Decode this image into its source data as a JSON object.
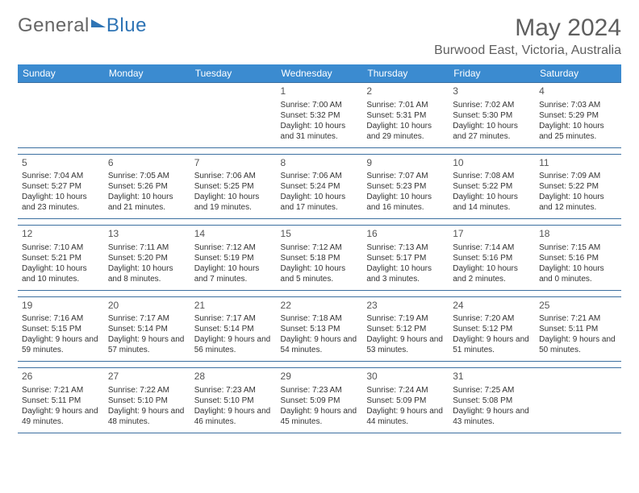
{
  "logo": {
    "part1": "General",
    "part2": "Blue"
  },
  "title": "May 2024",
  "location": "Burwood East, Victoria, Australia",
  "colors": {
    "header_bg": "#3b8bd0",
    "header_text": "#ffffff",
    "cell_border": "#3b6fa0",
    "body_text": "#333333",
    "title_text": "#5f5f5f",
    "logo_blue": "#2e74b5",
    "background": "#ffffff"
  },
  "day_headers": [
    "Sunday",
    "Monday",
    "Tuesday",
    "Wednesday",
    "Thursday",
    "Friday",
    "Saturday"
  ],
  "weeks": [
    [
      null,
      null,
      null,
      {
        "d": "1",
        "r": "7:00 AM",
        "s": "5:32 PM",
        "l": "10 hours and 31 minutes."
      },
      {
        "d": "2",
        "r": "7:01 AM",
        "s": "5:31 PM",
        "l": "10 hours and 29 minutes."
      },
      {
        "d": "3",
        "r": "7:02 AM",
        "s": "5:30 PM",
        "l": "10 hours and 27 minutes."
      },
      {
        "d": "4",
        "r": "7:03 AM",
        "s": "5:29 PM",
        "l": "10 hours and 25 minutes."
      }
    ],
    [
      {
        "d": "5",
        "r": "7:04 AM",
        "s": "5:27 PM",
        "l": "10 hours and 23 minutes."
      },
      {
        "d": "6",
        "r": "7:05 AM",
        "s": "5:26 PM",
        "l": "10 hours and 21 minutes."
      },
      {
        "d": "7",
        "r": "7:06 AM",
        "s": "5:25 PM",
        "l": "10 hours and 19 minutes."
      },
      {
        "d": "8",
        "r": "7:06 AM",
        "s": "5:24 PM",
        "l": "10 hours and 17 minutes."
      },
      {
        "d": "9",
        "r": "7:07 AM",
        "s": "5:23 PM",
        "l": "10 hours and 16 minutes."
      },
      {
        "d": "10",
        "r": "7:08 AM",
        "s": "5:22 PM",
        "l": "10 hours and 14 minutes."
      },
      {
        "d": "11",
        "r": "7:09 AM",
        "s": "5:22 PM",
        "l": "10 hours and 12 minutes."
      }
    ],
    [
      {
        "d": "12",
        "r": "7:10 AM",
        "s": "5:21 PM",
        "l": "10 hours and 10 minutes."
      },
      {
        "d": "13",
        "r": "7:11 AM",
        "s": "5:20 PM",
        "l": "10 hours and 8 minutes."
      },
      {
        "d": "14",
        "r": "7:12 AM",
        "s": "5:19 PM",
        "l": "10 hours and 7 minutes."
      },
      {
        "d": "15",
        "r": "7:12 AM",
        "s": "5:18 PM",
        "l": "10 hours and 5 minutes."
      },
      {
        "d": "16",
        "r": "7:13 AM",
        "s": "5:17 PM",
        "l": "10 hours and 3 minutes."
      },
      {
        "d": "17",
        "r": "7:14 AM",
        "s": "5:16 PM",
        "l": "10 hours and 2 minutes."
      },
      {
        "d": "18",
        "r": "7:15 AM",
        "s": "5:16 PM",
        "l": "10 hours and 0 minutes."
      }
    ],
    [
      {
        "d": "19",
        "r": "7:16 AM",
        "s": "5:15 PM",
        "l": "9 hours and 59 minutes."
      },
      {
        "d": "20",
        "r": "7:17 AM",
        "s": "5:14 PM",
        "l": "9 hours and 57 minutes."
      },
      {
        "d": "21",
        "r": "7:17 AM",
        "s": "5:14 PM",
        "l": "9 hours and 56 minutes."
      },
      {
        "d": "22",
        "r": "7:18 AM",
        "s": "5:13 PM",
        "l": "9 hours and 54 minutes."
      },
      {
        "d": "23",
        "r": "7:19 AM",
        "s": "5:12 PM",
        "l": "9 hours and 53 minutes."
      },
      {
        "d": "24",
        "r": "7:20 AM",
        "s": "5:12 PM",
        "l": "9 hours and 51 minutes."
      },
      {
        "d": "25",
        "r": "7:21 AM",
        "s": "5:11 PM",
        "l": "9 hours and 50 minutes."
      }
    ],
    [
      {
        "d": "26",
        "r": "7:21 AM",
        "s": "5:11 PM",
        "l": "9 hours and 49 minutes."
      },
      {
        "d": "27",
        "r": "7:22 AM",
        "s": "5:10 PM",
        "l": "9 hours and 48 minutes."
      },
      {
        "d": "28",
        "r": "7:23 AM",
        "s": "5:10 PM",
        "l": "9 hours and 46 minutes."
      },
      {
        "d": "29",
        "r": "7:23 AM",
        "s": "5:09 PM",
        "l": "9 hours and 45 minutes."
      },
      {
        "d": "30",
        "r": "7:24 AM",
        "s": "5:09 PM",
        "l": "9 hours and 44 minutes."
      },
      {
        "d": "31",
        "r": "7:25 AM",
        "s": "5:08 PM",
        "l": "9 hours and 43 minutes."
      },
      null
    ]
  ],
  "labels": {
    "sunrise": "Sunrise: ",
    "sunset": "Sunset: ",
    "daylight": "Daylight: "
  }
}
